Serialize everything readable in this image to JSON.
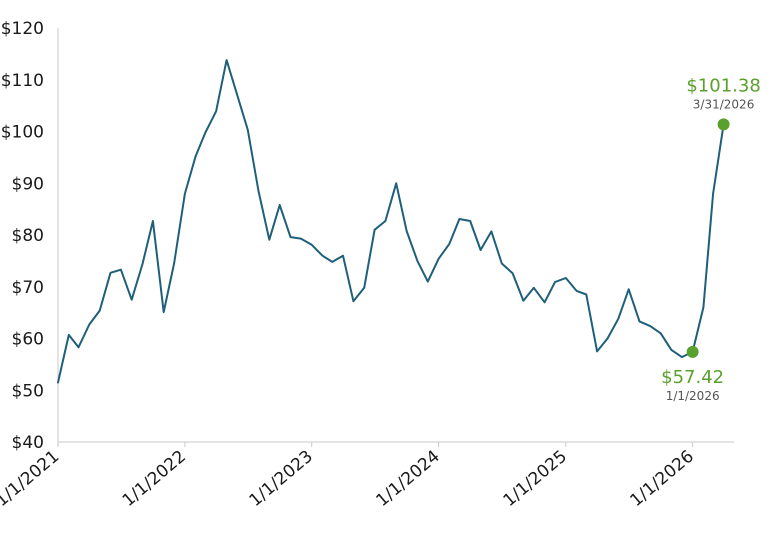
{
  "chart_data": {
    "type": "line",
    "title": "",
    "xlabel": "",
    "ylabel": "",
    "ylim": [
      40,
      120
    ],
    "yticks": [
      40,
      50,
      60,
      70,
      80,
      90,
      100,
      110,
      120
    ],
    "ytick_labels": [
      "$40",
      "$50",
      "$60",
      "$70",
      "$80",
      "$90",
      "$100",
      "$110",
      "$120"
    ],
    "xticks": [
      "2021-01-01",
      "2022-01-01",
      "2023-01-01",
      "2024-01-01",
      "2025-01-01",
      "2026-01-01"
    ],
    "xtick_labels": [
      "1/1/2021",
      "1/1/2022",
      "1/1/2023",
      "1/1/2024",
      "1/1/2025",
      "1/1/2026"
    ],
    "x_range": [
      "2021-01-01",
      "2026-04-30"
    ],
    "grid": false,
    "line_color": "#1f5f7a",
    "highlight_color": "#5aa02c",
    "series": [
      {
        "x": [
          "2021-01-01",
          "2021-02-01",
          "2021-03-01",
          "2021-04-01",
          "2021-05-01",
          "2021-06-01",
          "2021-07-01",
          "2021-08-01",
          "2021-09-01",
          "2021-10-01",
          "2021-11-01",
          "2021-12-01",
          "2022-01-01",
          "2022-02-01",
          "2022-03-01",
          "2022-04-01",
          "2022-05-01",
          "2022-06-01",
          "2022-07-01",
          "2022-08-01",
          "2022-09-01",
          "2022-10-01",
          "2022-11-01",
          "2022-12-01",
          "2023-01-01",
          "2023-02-01",
          "2023-03-01",
          "2023-04-01",
          "2023-05-01",
          "2023-06-01",
          "2023-07-01",
          "2023-08-01",
          "2023-09-01",
          "2023-10-01",
          "2023-11-01",
          "2023-12-01",
          "2024-01-01",
          "2024-02-01",
          "2024-03-01",
          "2024-04-01",
          "2024-05-01",
          "2024-06-01",
          "2024-07-01",
          "2024-08-01",
          "2024-09-01",
          "2024-10-01",
          "2024-11-01",
          "2024-12-01",
          "2025-01-01",
          "2025-02-01",
          "2025-03-01",
          "2025-04-01",
          "2025-05-01",
          "2025-06-01",
          "2025-07-01",
          "2025-08-01",
          "2025-09-01",
          "2025-10-01",
          "2025-11-01",
          "2025-12-01",
          "2026-01-01",
          "2026-02-01",
          "2026-03-01",
          "2026-03-31"
        ],
        "values": [
          51.5,
          60.7,
          58.3,
          62.7,
          65.4,
          72.7,
          73.3,
          67.5,
          74.4,
          82.7,
          65.1,
          74.5,
          88.0,
          95.2,
          99.8,
          103.9,
          113.8,
          107.0,
          100.3,
          88.5,
          79.1,
          85.8,
          79.6,
          79.3,
          78.1,
          76.0,
          74.8,
          76.0,
          67.2,
          69.8,
          81.0,
          82.7,
          90.0,
          80.8,
          75.0,
          71.0,
          75.4,
          78.3,
          83.1,
          82.7,
          77.1,
          80.7,
          74.5,
          72.6,
          67.3,
          69.8,
          67.0,
          70.9,
          71.7,
          69.2,
          68.5,
          57.5,
          60.0,
          63.8,
          69.5,
          63.3,
          62.4,
          61.0,
          57.8,
          56.4,
          57.42,
          66.0,
          88.0,
          101.38
        ]
      }
    ],
    "annotations": [
      {
        "date": "2026-01-01",
        "value": 57.42,
        "label": "$57.42",
        "date_label": "1/1/2026"
      },
      {
        "date": "2026-03-31",
        "value": 101.38,
        "label": "$101.38",
        "date_label": "3/31/2026"
      }
    ]
  }
}
